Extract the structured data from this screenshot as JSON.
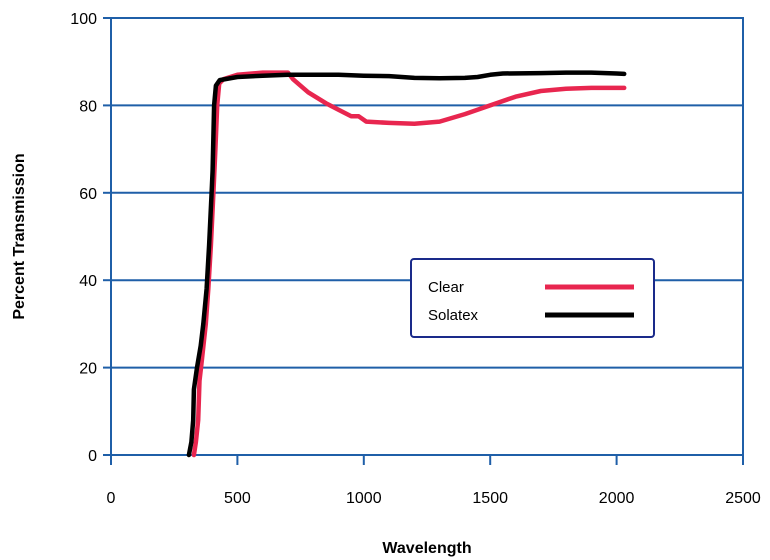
{
  "chart_data": {
    "type": "line",
    "xlabel": "Wavelength",
    "ylabel": "Percent Transmission",
    "xlim": [
      0,
      2500
    ],
    "ylim": [
      0,
      100
    ],
    "xticks": [
      0,
      500,
      1000,
      1500,
      2000,
      2500
    ],
    "yticks": [
      0,
      20,
      40,
      60,
      80,
      100
    ],
    "grid": "horizontal",
    "legend": "center-right",
    "series": [
      {
        "name": "Clear",
        "color": "#e8264f",
        "points": [
          [
            328,
            0
          ],
          [
            336,
            3
          ],
          [
            345,
            8
          ],
          [
            350,
            17
          ],
          [
            360,
            22
          ],
          [
            375,
            30
          ],
          [
            385,
            38
          ],
          [
            395,
            48
          ],
          [
            405,
            60
          ],
          [
            413,
            70
          ],
          [
            420,
            80
          ],
          [
            428,
            85
          ],
          [
            445,
            86
          ],
          [
            500,
            87
          ],
          [
            600,
            87.5
          ],
          [
            700,
            87.5
          ],
          [
            720,
            86
          ],
          [
            780,
            83
          ],
          [
            850,
            80.5
          ],
          [
            900,
            79
          ],
          [
            950,
            77.5
          ],
          [
            980,
            77.5
          ],
          [
            1010,
            76.3
          ],
          [
            1100,
            76
          ],
          [
            1200,
            75.8
          ],
          [
            1300,
            76.3
          ],
          [
            1400,
            78
          ],
          [
            1500,
            80
          ],
          [
            1600,
            82
          ],
          [
            1700,
            83.3
          ],
          [
            1800,
            83.8
          ],
          [
            1900,
            84
          ],
          [
            2000,
            84
          ],
          [
            2030,
            84
          ]
        ]
      },
      {
        "name": "Solatex",
        "color": "#000000",
        "points": [
          [
            308,
            0
          ],
          [
            318,
            3
          ],
          [
            325,
            8
          ],
          [
            328,
            15
          ],
          [
            340,
            20
          ],
          [
            355,
            25
          ],
          [
            365,
            30
          ],
          [
            378,
            38
          ],
          [
            388,
            48
          ],
          [
            398,
            60
          ],
          [
            402,
            65
          ],
          [
            405,
            73
          ],
          [
            408,
            80
          ],
          [
            415,
            84.5
          ],
          [
            430,
            85.8
          ],
          [
            500,
            86.5
          ],
          [
            600,
            86.8
          ],
          [
            700,
            87
          ],
          [
            800,
            87
          ],
          [
            900,
            87
          ],
          [
            1000,
            86.8
          ],
          [
            1100,
            86.7
          ],
          [
            1200,
            86.3
          ],
          [
            1300,
            86.2
          ],
          [
            1400,
            86.3
          ],
          [
            1450,
            86.5
          ],
          [
            1500,
            87
          ],
          [
            1550,
            87.3
          ],
          [
            1700,
            87.4
          ],
          [
            1800,
            87.5
          ],
          [
            1900,
            87.5
          ],
          [
            2000,
            87.3
          ],
          [
            2030,
            87.2
          ]
        ]
      }
    ]
  }
}
